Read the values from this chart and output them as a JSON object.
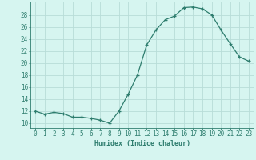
{
  "x": [
    0,
    1,
    2,
    3,
    4,
    5,
    6,
    7,
    8,
    9,
    10,
    11,
    12,
    13,
    14,
    15,
    16,
    17,
    18,
    19,
    20,
    21,
    22,
    23
  ],
  "y": [
    12.0,
    11.5,
    11.8,
    11.6,
    11.0,
    11.0,
    10.8,
    10.5,
    10.0,
    12.0,
    14.8,
    18.0,
    23.0,
    25.5,
    27.2,
    27.8,
    29.2,
    29.3,
    29.0,
    28.0,
    25.5,
    23.2,
    21.0,
    20.3
  ],
  "line_color": "#2e7d6e",
  "marker": "+",
  "bg_color": "#d6f5f0",
  "grid_color": "#b8ddd8",
  "xlabel": "Humidex (Indice chaleur)",
  "ylabel_ticks": [
    10,
    12,
    14,
    16,
    18,
    20,
    22,
    24,
    26,
    28
  ],
  "ylim": [
    9.2,
    30.2
  ],
  "xlim": [
    -0.5,
    23.5
  ],
  "tick_color": "#2e7d6e",
  "label_fontsize": 5.5,
  "axis_fontsize": 6.0
}
